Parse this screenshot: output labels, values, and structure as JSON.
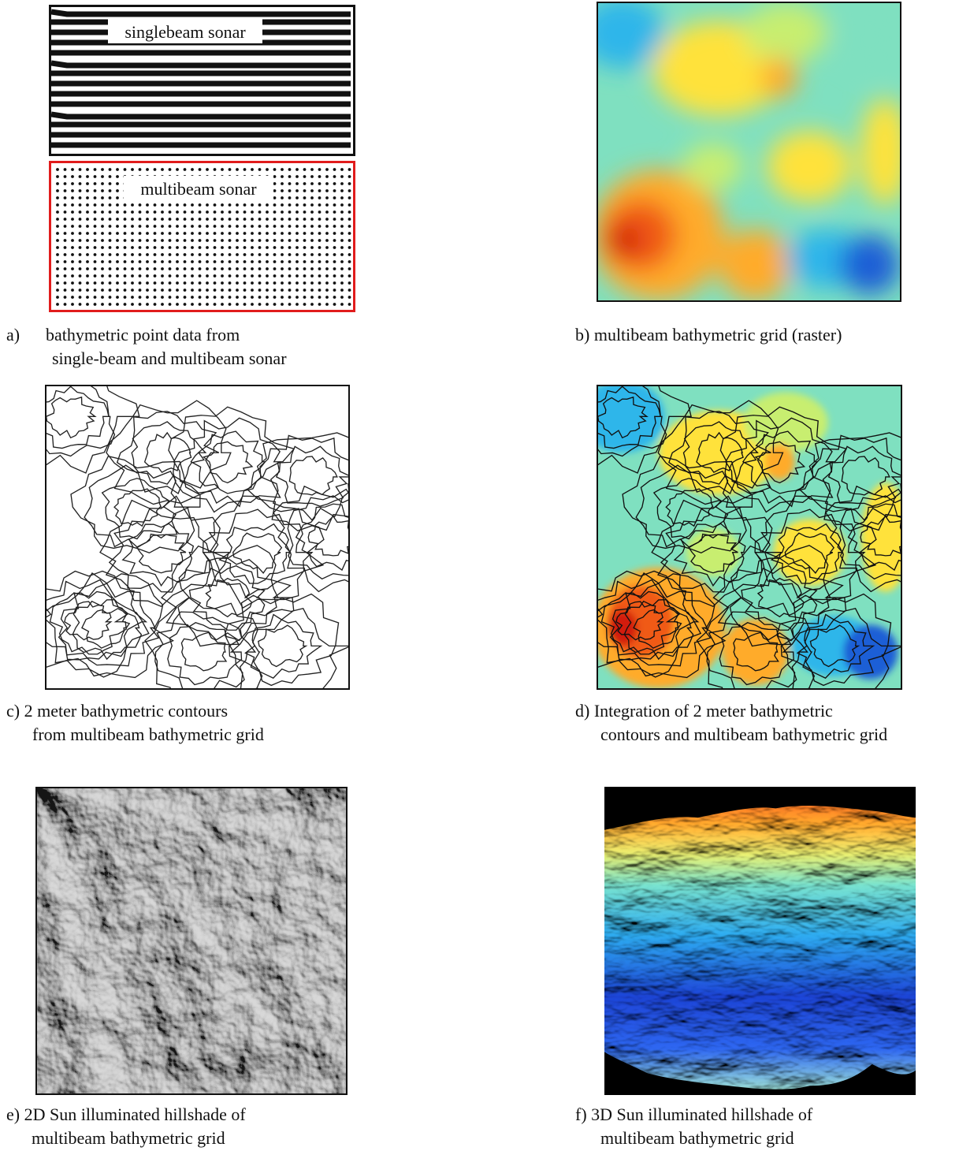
{
  "panel_a": {
    "singlebeam_label": "singlebeam sonar",
    "multibeam_label": "multibeam sonar",
    "caption_letter": "a)",
    "caption_line1": "bathymetric point data from",
    "caption_line2": "single-beam and multibeam sonar",
    "singlebeam_border_color": "#111111",
    "multibeam_border_color": "#e11c1c"
  },
  "panel_b": {
    "caption": "b) multibeam bathymetric grid (raster)"
  },
  "panel_c": {
    "caption_line1": "c) 2 meter bathymetric contours",
    "caption_line2": "from multibeam bathymetric grid"
  },
  "panel_d": {
    "caption_line1": "d) Integration of 2 meter bathymetric",
    "caption_line2": "contours and multibeam bathymetric grid"
  },
  "panel_e": {
    "caption_line1": "e) 2D Sun illuminated hillshade of",
    "caption_line2": "multibeam bathymetric grid"
  },
  "panel_f": {
    "caption_line1": "f) 3D Sun illuminated hillshade of",
    "caption_line2": "multibeam bathymetric grid"
  },
  "colormap": [
    "#1e5fd6",
    "#2fb6ea",
    "#7fe0c0",
    "#c8ee70",
    "#ffe23a",
    "#ffab2a",
    "#f05a14",
    "#d21a0a"
  ]
}
